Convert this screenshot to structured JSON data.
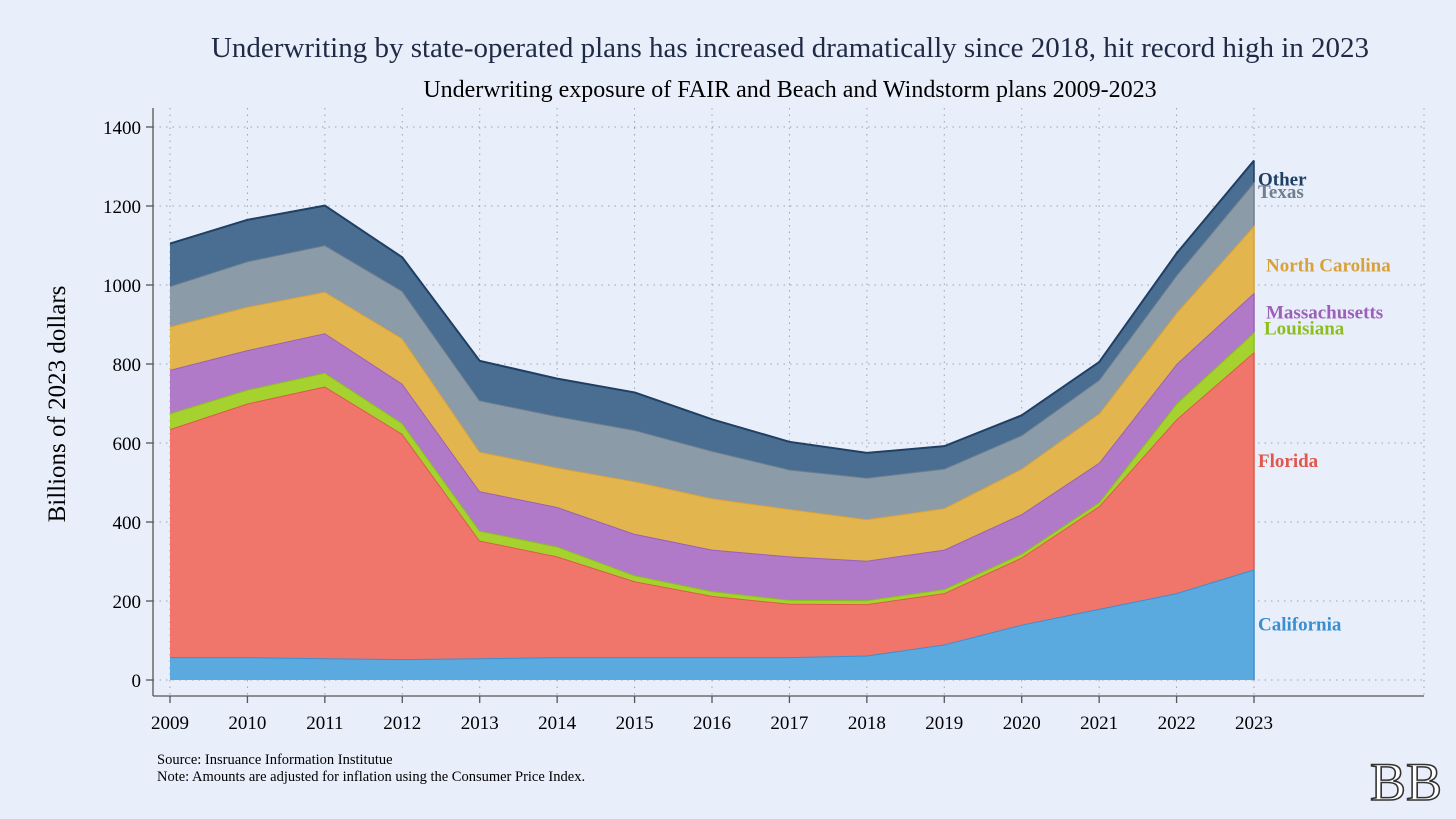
{
  "chart_data": {
    "type": "area",
    "stacked": true,
    "title": "Underwriting by state-operated plans has increased dramatically since 2018, hit record high in 2023",
    "subtitle": "Underwriting exposure of FAIR and Beach and Windstorm plans 2009-2023",
    "ylabel": "Billions of 2023 dollars",
    "xlabel": "",
    "ylim": [
      0,
      1400
    ],
    "yticks": [
      "0",
      "200",
      "400",
      "600",
      "800",
      "1000",
      "1200",
      "1400"
    ],
    "x": [
      "2009",
      "2010",
      "2011",
      "2012",
      "2013",
      "2014",
      "2015",
      "2016",
      "2017",
      "2018",
      "2019",
      "2020",
      "2021",
      "2022",
      "2023"
    ],
    "grid": true,
    "legend": "direct labels at right end",
    "series": [
      {
        "name": "California",
        "color": "#5aaae0",
        "line": "#3a8fd0",
        "values": [
          58,
          58,
          55,
          53,
          55,
          58,
          58,
          58,
          58,
          62,
          90,
          140,
          180,
          220,
          280
        ]
      },
      {
        "name": "Florida",
        "color": "#f0766c",
        "line": "#e0584d",
        "values": [
          577,
          642,
          688,
          570,
          298,
          255,
          192,
          155,
          135,
          130,
          130,
          170,
          260,
          440,
          550
        ]
      },
      {
        "name": "Louisiana",
        "color": "#a6d230",
        "line": "#8cbf1e",
        "values": [
          40,
          35,
          35,
          27,
          25,
          25,
          15,
          12,
          10,
          10,
          10,
          10,
          10,
          40,
          50
        ]
      },
      {
        "name": "Massachusetts",
        "color": "#b07ac8",
        "line": "#9b60b8",
        "values": [
          110,
          100,
          100,
          100,
          100,
          100,
          105,
          105,
          110,
          100,
          100,
          100,
          100,
          100,
          100
        ]
      },
      {
        "name": "North Carolina",
        "color": "#e2b54e",
        "line": "#d8a23a",
        "values": [
          110,
          110,
          105,
          115,
          100,
          100,
          133,
          130,
          120,
          105,
          105,
          115,
          125,
          130,
          170
        ]
      },
      {
        "name": "Texas",
        "color": "#8c9ba8",
        "line": "#6e7f8e",
        "values": [
          102,
          115,
          118,
          120,
          130,
          130,
          130,
          120,
          100,
          105,
          100,
          85,
          85,
          95,
          110
        ]
      },
      {
        "name": "Other",
        "color": "#4a6d92",
        "line": "#1f3f63",
        "values": [
          108,
          105,
          100,
          85,
          100,
          95,
          95,
          80,
          70,
          63,
          57,
          50,
          45,
          55,
          55
        ]
      }
    ],
    "label_colors": {
      "Other": "#1f3f63",
      "Texas": "#6e7f8e",
      "North Carolina": "#d8a23a",
      "Massachusetts": "#9b60b8",
      "Louisiana": "#8cbf1e",
      "Florida": "#e0584d",
      "California": "#3a8fd0"
    }
  },
  "notes": {
    "source": "Source: Insruance Information Institutue",
    "note": "Note: Amounts are adjusted for inflation using the Consumer Price Index."
  },
  "logo": {
    "text": "BB"
  }
}
